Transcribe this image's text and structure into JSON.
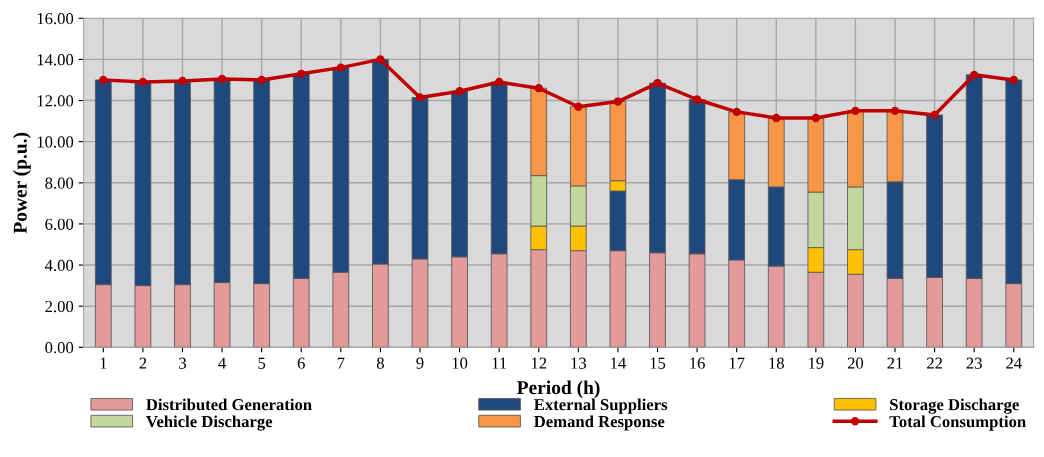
{
  "chart_data": {
    "type": "bar",
    "stacked": true,
    "xlabel": "Period (h)",
    "ylabel": "Power (p.u.)",
    "categories": [
      "1",
      "2",
      "3",
      "4",
      "5",
      "6",
      "7",
      "8",
      "9",
      "10",
      "11",
      "12",
      "13",
      "14",
      "15",
      "16",
      "17",
      "18",
      "19",
      "20",
      "21",
      "22",
      "23",
      "24"
    ],
    "ylim": [
      0,
      16
    ],
    "yticks": [
      {
        "value": 0,
        "label": "0.00"
      },
      {
        "value": 2,
        "label": "2.00"
      },
      {
        "value": 4,
        "label": "4.00"
      },
      {
        "value": 6,
        "label": "6.00"
      },
      {
        "value": 8,
        "label": "8.00"
      },
      {
        "value": 10,
        "label": "10.00"
      },
      {
        "value": 12,
        "label": "12.00"
      },
      {
        "value": 14,
        "label": "14.00"
      },
      {
        "value": 16,
        "label": "16.00"
      }
    ],
    "grid": true,
    "legend": "bottom",
    "series": [
      {
        "name": "Distributed Generation",
        "color": "#e39a9a",
        "values": [
          3.05,
          3.0,
          3.05,
          3.15,
          3.1,
          3.35,
          3.65,
          4.05,
          4.3,
          4.4,
          4.55,
          4.75,
          4.7,
          4.7,
          4.6,
          4.55,
          4.25,
          3.95,
          3.65,
          3.55,
          3.35,
          3.4,
          3.35,
          3.1
        ]
      },
      {
        "name": "External Suppliers",
        "color": "#1f497d",
        "values": [
          9.95,
          9.9,
          9.9,
          9.9,
          9.9,
          9.95,
          9.95,
          9.95,
          7.85,
          8.05,
          8.35,
          null,
          null,
          2.9,
          8.25,
          7.5,
          3.9,
          3.85,
          null,
          null,
          4.7,
          7.9,
          9.9,
          9.9
        ]
      },
      {
        "name": "Storage Discharge",
        "color": "#ffc000",
        "values": [
          null,
          null,
          null,
          null,
          null,
          null,
          null,
          null,
          null,
          null,
          null,
          1.15,
          1.2,
          0.5,
          null,
          null,
          null,
          null,
          1.2,
          1.2,
          null,
          null,
          null,
          null
        ]
      },
      {
        "name": "Vehicle Discharge",
        "color": "#c3d69b",
        "values": [
          null,
          null,
          null,
          null,
          null,
          null,
          null,
          null,
          null,
          null,
          null,
          2.45,
          1.95,
          null,
          null,
          null,
          null,
          null,
          2.7,
          3.05,
          null,
          null,
          null,
          null
        ]
      },
      {
        "name": "Demand Response",
        "color": "#f79646",
        "values": [
          null,
          null,
          null,
          null,
          null,
          null,
          null,
          null,
          null,
          null,
          null,
          4.25,
          3.85,
          3.85,
          null,
          null,
          3.3,
          3.35,
          3.6,
          3.7,
          3.45,
          null,
          null,
          null
        ]
      },
      {
        "name": "Total Consumption",
        "type": "line",
        "color": "#c00000",
        "marker": "circle",
        "values": [
          13.0,
          12.9,
          12.95,
          13.05,
          13.0,
          13.3,
          13.6,
          14.0,
          12.15,
          12.45,
          12.9,
          12.6,
          11.7,
          11.95,
          12.85,
          12.05,
          11.45,
          11.15,
          11.15,
          11.5,
          11.5,
          11.3,
          13.25,
          13.0
        ]
      }
    ]
  }
}
